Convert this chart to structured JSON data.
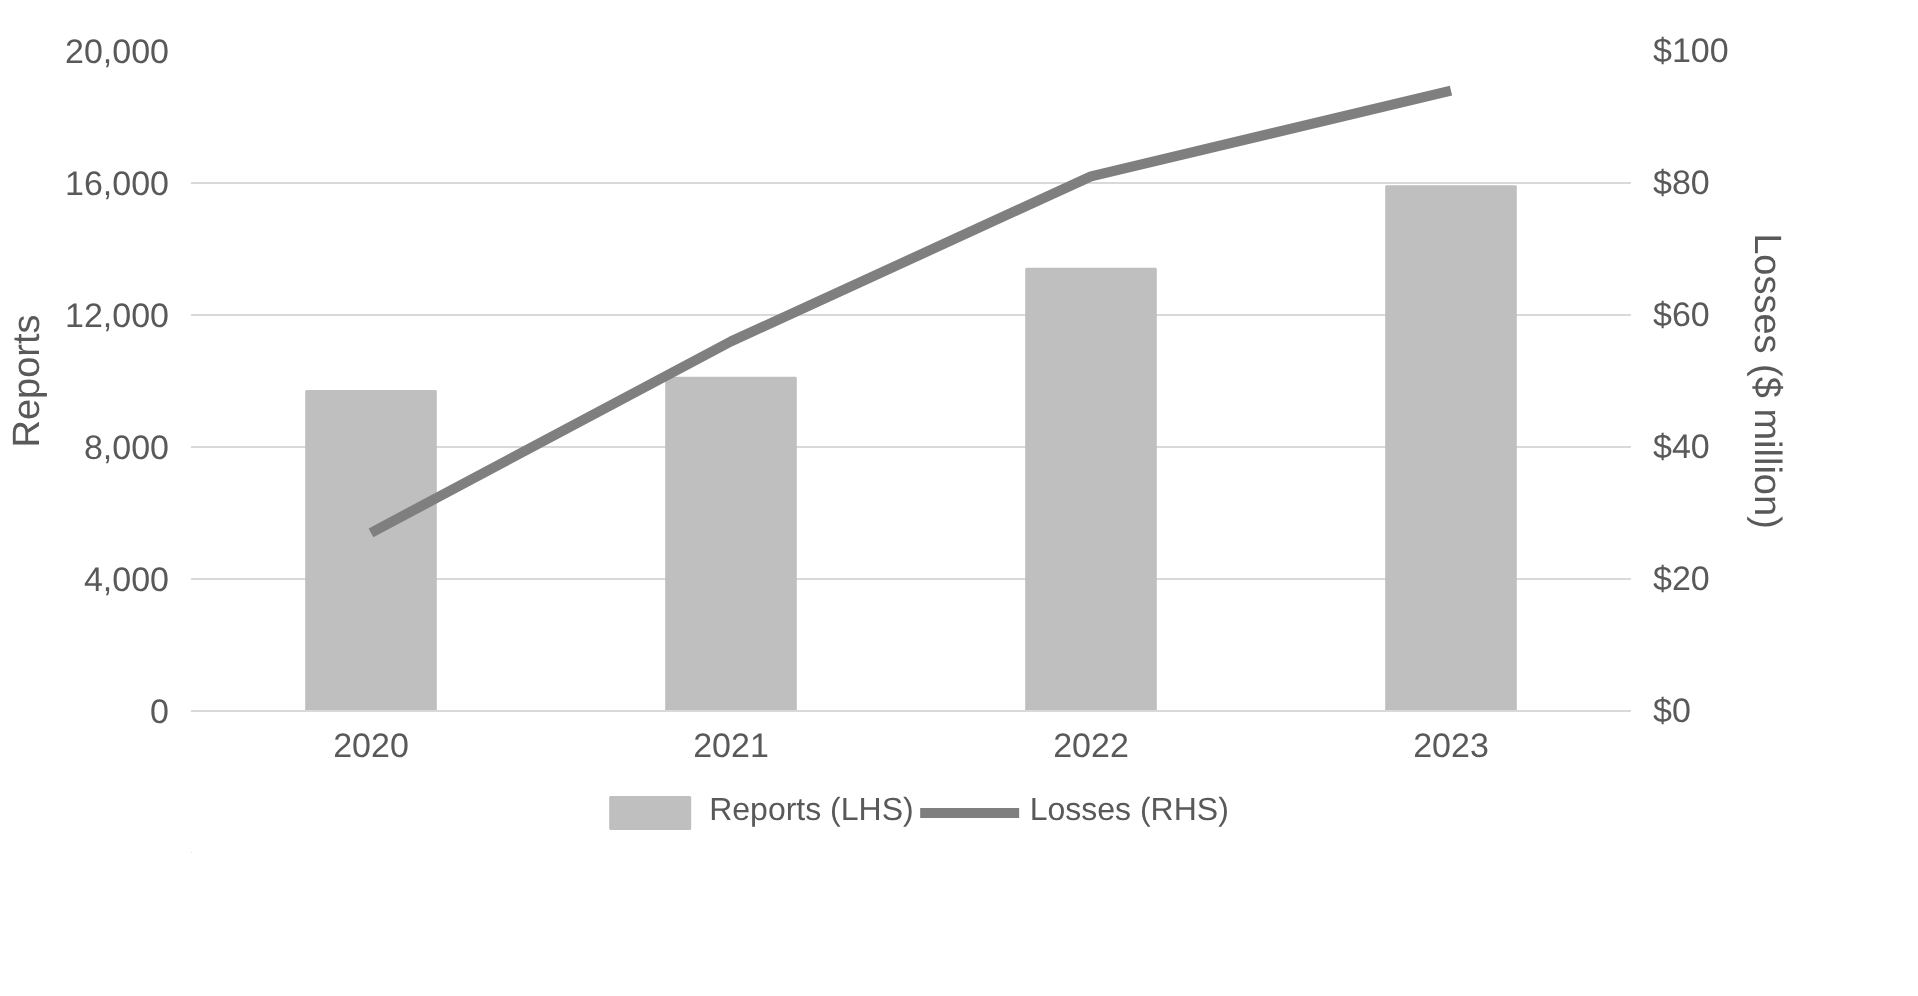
{
  "chart_data": {
    "type": "bar",
    "categories": [
      "2020",
      "2021",
      "2022",
      "2023"
    ],
    "ylabel": "Reports",
    "y2label": "Losses ($ million)",
    "series": [
      {
        "name": "Reports (LHS)",
        "type": "bar",
        "color": "#bfbfbf",
        "values": [
          9700,
          10100,
          13400,
          15900
        ]
      },
      {
        "name": "Losses (RHS)",
        "type": "line",
        "axis": "y2",
        "color": "#7f7f7f",
        "values": [
          27,
          56,
          81,
          94
        ]
      }
    ],
    "ylim": [
      0,
      20000
    ],
    "yticks": [
      {
        "value": 0,
        "label": "0"
      },
      {
        "value": 4000,
        "label": "4,000"
      },
      {
        "value": 8000,
        "label": "8,000"
      },
      {
        "value": 12000,
        "label": "12,000"
      },
      {
        "value": 16000,
        "label": "16,000"
      },
      {
        "value": 20000,
        "label": "20,000"
      }
    ],
    "y2lim": [
      0,
      100
    ],
    "y2ticks": [
      {
        "value": 0,
        "label": "$0"
      },
      {
        "value": 20,
        "label": "$20"
      },
      {
        "value": 40,
        "label": "$40"
      },
      {
        "value": 60,
        "label": "$60"
      },
      {
        "value": 80,
        "label": "$80"
      },
      {
        "value": 100,
        "label": "$100"
      }
    ],
    "grid": "y",
    "legend": "bottom",
    "marker": "none"
  }
}
